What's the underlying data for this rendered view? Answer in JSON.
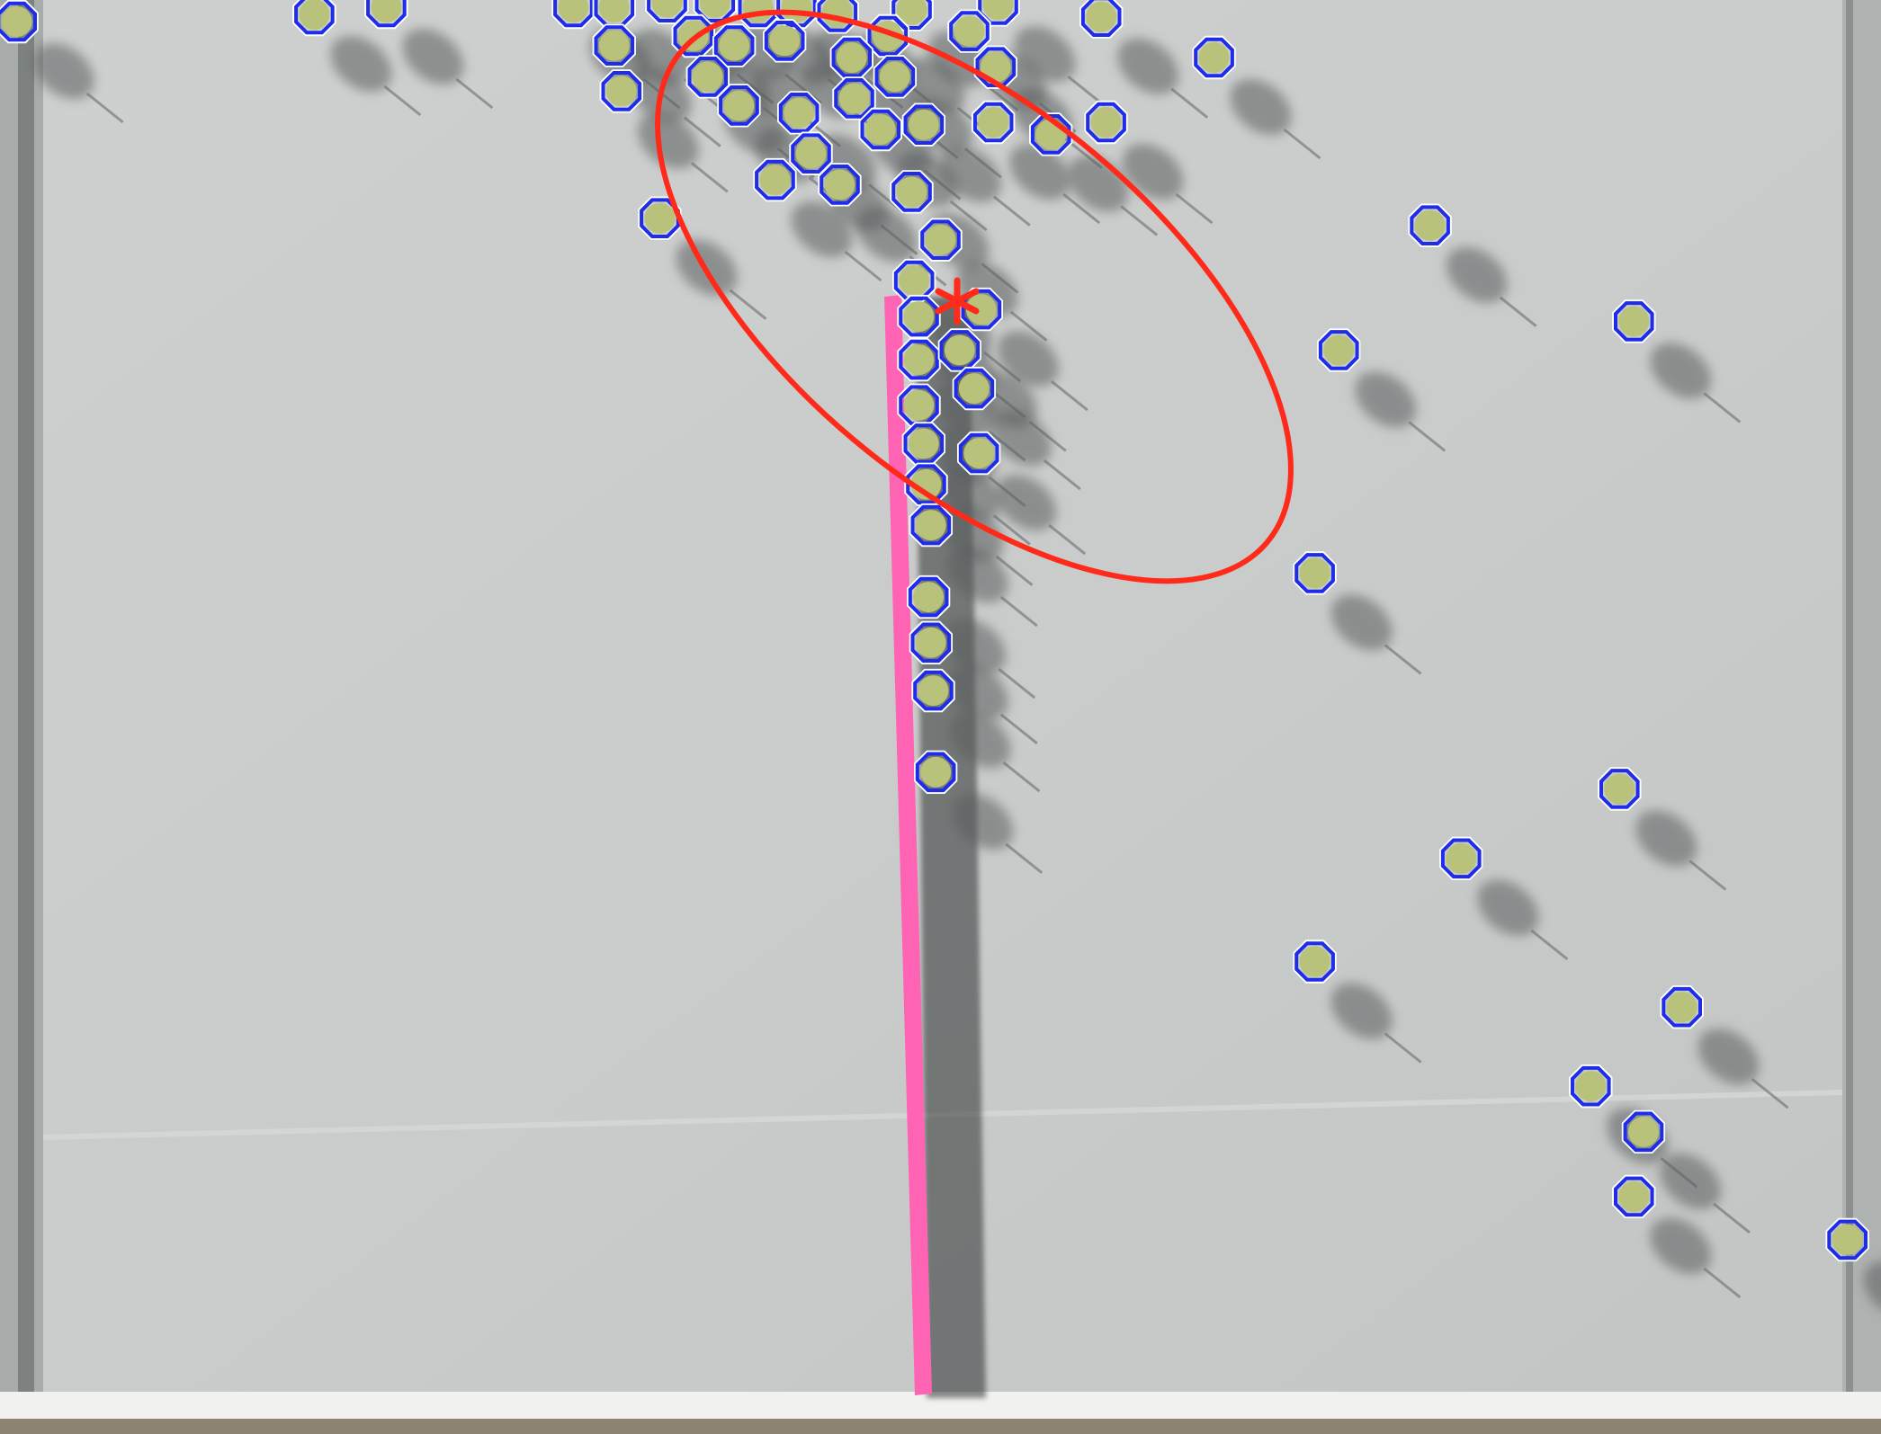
{
  "scene": {
    "description_label": "",
    "colors": {
      "board": "#c8cbcb",
      "board_light": "#d3d6d5",
      "frame": "#8f9493",
      "floor": "#f2f2f0",
      "floor_edge": "#9a8f80",
      "shadow": "#5a5d5d",
      "wall_line": "#ff5fae",
      "marker_ring": "#1f2de8",
      "marker_fill": "#b8c27a",
      "ellipse": "#ff2a1a",
      "centroid": "#ff2a1a"
    },
    "markers": {
      "shape": "hexagon",
      "count": 73,
      "annotation": "blue-octagon-detections"
    },
    "overlays": {
      "wall": "pink-vertical-barrier",
      "ellipse": "red-covariance-ellipse",
      "centroid": "red-asterisk-centroid"
    }
  }
}
